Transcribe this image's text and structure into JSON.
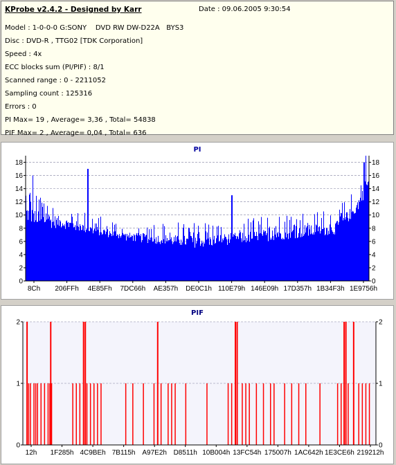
{
  "header": {
    "title": "KProbe v2.4.2 - Designed by Karr",
    "date": "Date : 09.06.2005 9:30:54",
    "lines": [
      "Model : 1-0-0-0 G:SONY    DVD RW DW-D22A   BYS3",
      "Disc : DVD-R , TTG02 [TDK Corporation]",
      "Speed : 4x",
      "ECC blocks sum (PI/PIF) : 8/1",
      "Scanned range : 0 - 2211052",
      "Sampling count : 125316",
      "Errors : 0",
      "PI Max= 19 , Average= 3,36 , Total= 54838",
      "PIF Max= 2 , Average= 0,04 , Total= 636"
    ]
  },
  "chart_data": [
    {
      "type": "bar",
      "title": "PI",
      "color": "#0000ff",
      "ylim": [
        0,
        19
      ],
      "yticks": [
        0,
        2,
        4,
        6,
        8,
        10,
        12,
        14,
        16,
        18
      ],
      "x_tick_labels": [
        "8Ch",
        "206FFh",
        "4E85Fh",
        "7DC66h",
        "AE357h",
        "DE0C1h",
        "110E79h",
        "146E09h",
        "17D357h",
        "1B34F3h",
        "1E9756h"
      ],
      "grid": true,
      "profile_approx": [
        {
          "x": 0.0,
          "base": 9,
          "peak": 15
        },
        {
          "x": 0.03,
          "base": 8,
          "peak": 14
        },
        {
          "x": 0.1,
          "base": 8,
          "peak": 12
        },
        {
          "x": 0.2,
          "base": 7,
          "peak": 10
        },
        {
          "x": 0.3,
          "base": 6,
          "peak": 9
        },
        {
          "x": 0.5,
          "base": 5,
          "peak": 9
        },
        {
          "x": 0.7,
          "base": 6,
          "peak": 10
        },
        {
          "x": 0.9,
          "base": 7,
          "peak": 11
        },
        {
          "x": 0.96,
          "base": 10,
          "peak": 14
        },
        {
          "x": 1.0,
          "base": 14,
          "peak": 19
        }
      ],
      "spikes": [
        {
          "x": 0.18,
          "value": 17
        },
        {
          "x": 0.02,
          "value": 16
        },
        {
          "x": 0.99,
          "value": 19
        },
        {
          "x": 0.985,
          "value": 18
        },
        {
          "x": 0.6,
          "value": 13
        }
      ]
    },
    {
      "type": "bar",
      "title": "PIF",
      "color": "#ff0000",
      "ylim": [
        0,
        2
      ],
      "yticks": [
        0,
        1,
        2
      ],
      "x_tick_labels": [
        "12h",
        "1F285h",
        "4C9BEh",
        "7B115h",
        "A97E2h",
        "D8511h",
        "10B004h",
        "13FC54h",
        "175007h",
        "1AC642h",
        "1E3CE6h",
        "219212h"
      ],
      "grid": true,
      "bars_value_2": [
        0.01,
        0.077,
        0.17,
        0.175,
        0.38,
        0.6,
        0.605,
        0.908,
        0.913,
        0.935
      ],
      "bars_value_1": [
        0.015,
        0.02,
        0.03,
        0.035,
        0.04,
        0.05,
        0.06,
        0.07,
        0.075,
        0.08,
        0.14,
        0.15,
        0.16,
        0.18,
        0.19,
        0.2,
        0.21,
        0.22,
        0.29,
        0.31,
        0.34,
        0.37,
        0.39,
        0.41,
        0.42,
        0.43,
        0.46,
        0.52,
        0.58,
        0.59,
        0.62,
        0.63,
        0.64,
        0.66,
        0.68,
        0.7,
        0.71,
        0.74,
        0.76,
        0.78,
        0.8,
        0.84,
        0.89,
        0.9,
        0.92,
        0.95,
        0.96,
        0.97,
        0.98
      ]
    }
  ]
}
